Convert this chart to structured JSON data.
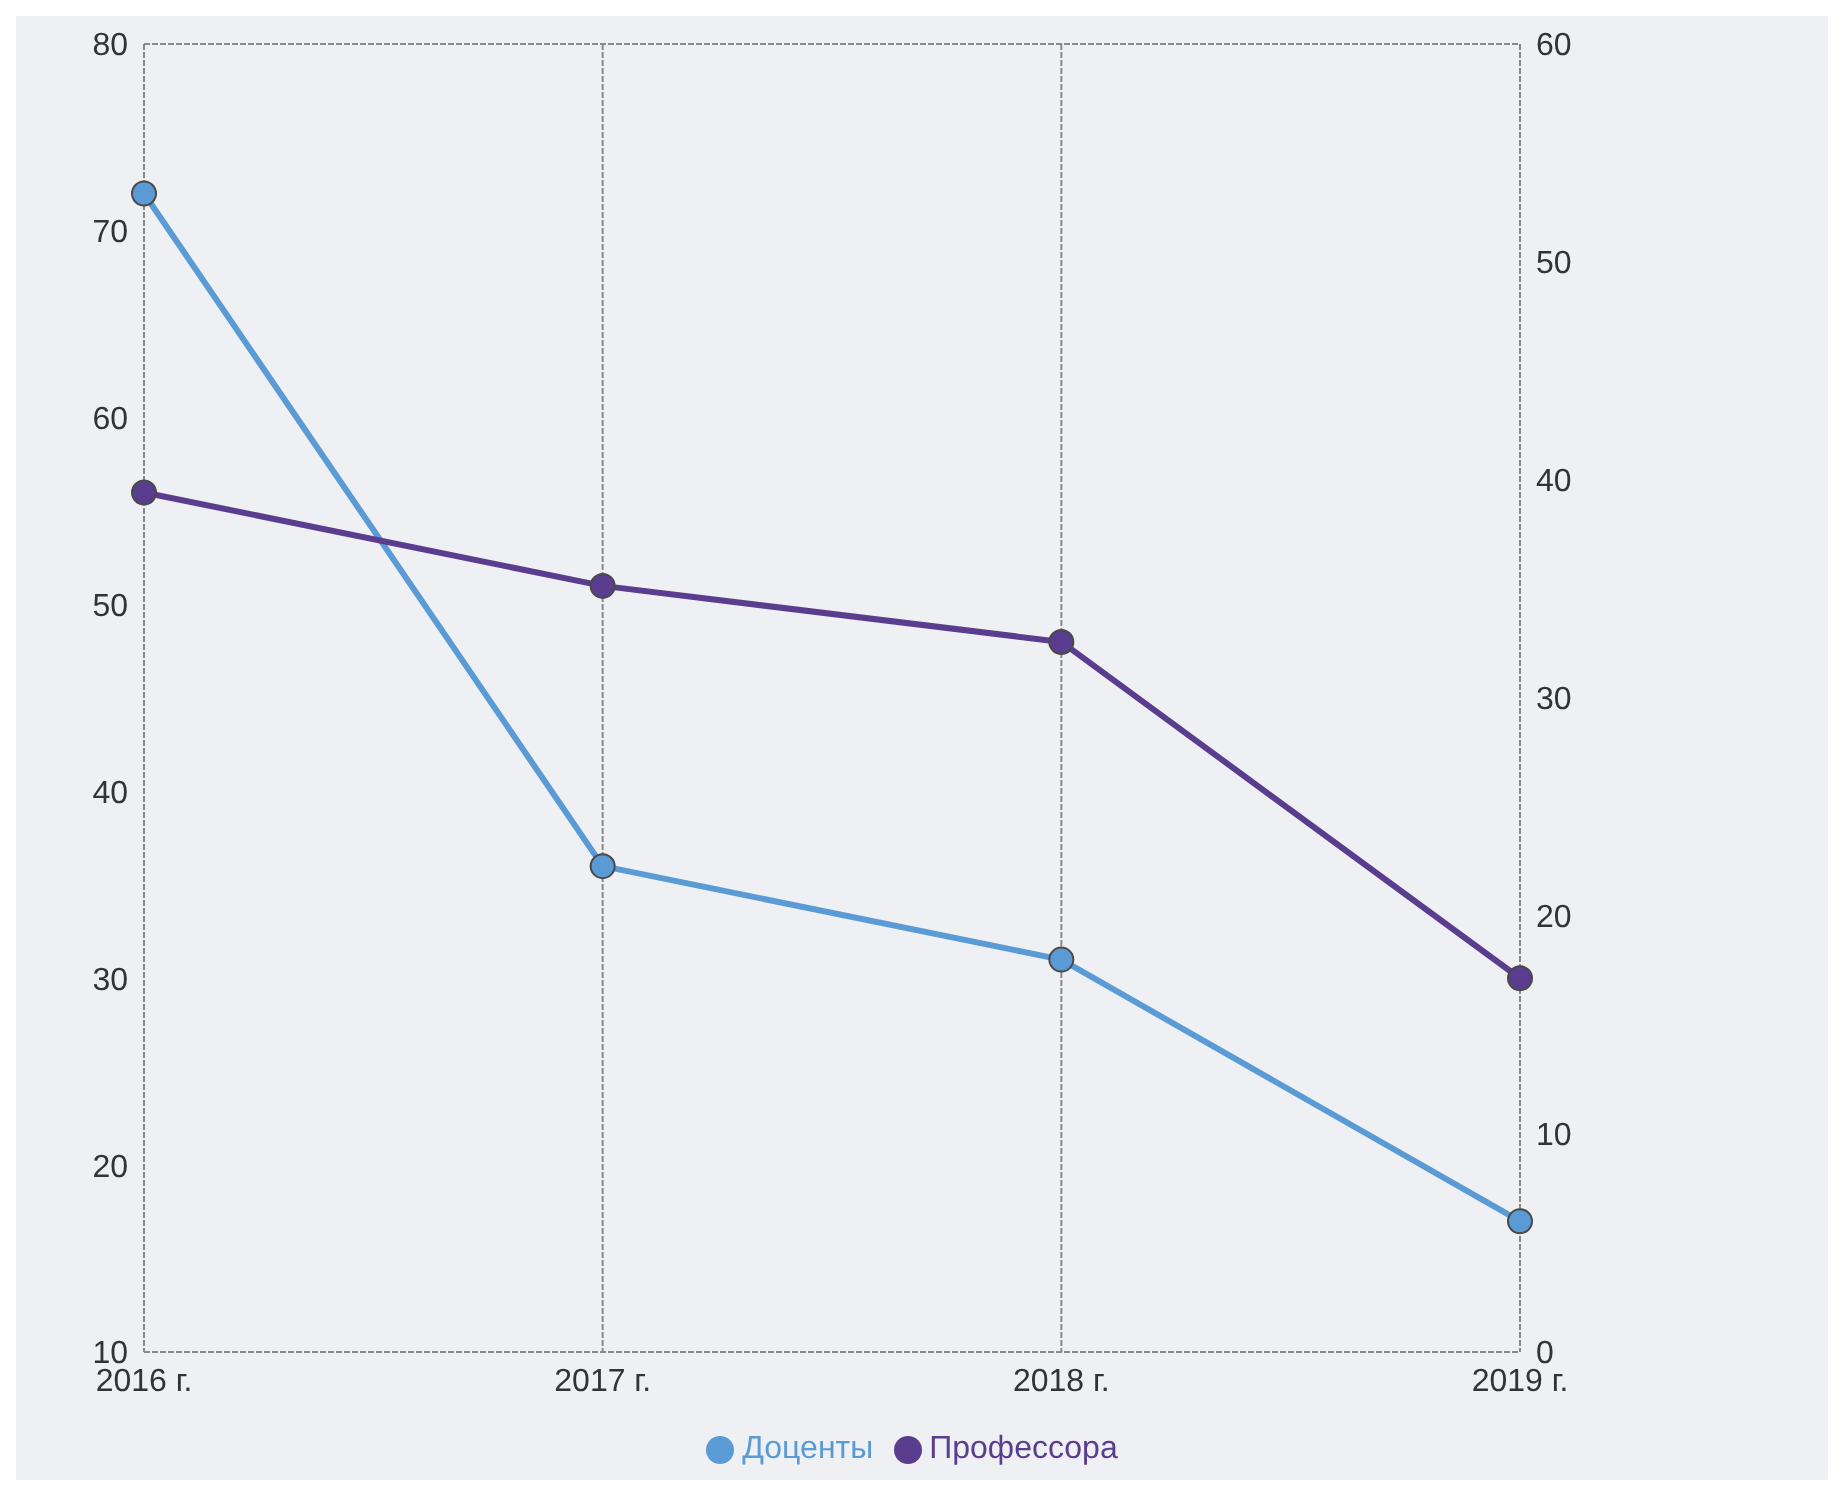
{
  "chart_data": {
    "type": "line",
    "categories": [
      "2016 г.",
      "2017 г.",
      "2018 г.",
      "2019 г."
    ],
    "series": [
      {
        "name": "Доценты",
        "color": "#5b9bd5",
        "values": [
          72,
          36,
          31,
          17
        ]
      },
      {
        "name": "Профессора",
        "color": "#5a3d8f",
        "values": [
          56,
          51,
          48,
          30
        ]
      }
    ],
    "ylim": [
      10,
      80
    ],
    "yticks": [
      10,
      20,
      30,
      40,
      50,
      60,
      70,
      80
    ],
    "y2lim": [
      0,
      60
    ],
    "y2ticks": [
      0,
      10,
      20,
      30,
      40,
      50,
      60
    ],
    "grid": true,
    "legend": "bottom",
    "marker": "circle",
    "line_style": "solid"
  }
}
